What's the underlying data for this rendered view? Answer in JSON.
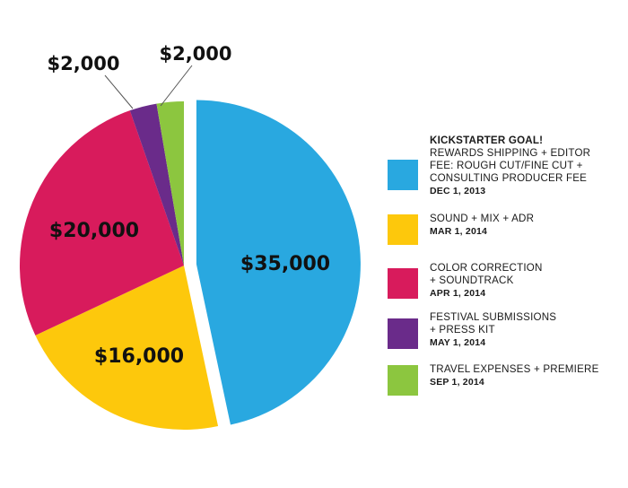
{
  "chart_data": {
    "type": "pie",
    "title": "",
    "slices": [
      {
        "id": "slice-35000",
        "label": "$35,000",
        "value": 35000,
        "color": "#29a8e0",
        "exploded": true
      },
      {
        "id": "slice-16000",
        "label": "$16,000",
        "value": 16000,
        "color": "#fdc80c"
      },
      {
        "id": "slice-20000",
        "label": "$20,000",
        "value": 20000,
        "color": "#d81b5c"
      },
      {
        "id": "slice-2000-festival",
        "label": "$2,000",
        "value": 2000,
        "color": "#6a2b8a"
      },
      {
        "id": "slice-2000-travel",
        "label": "$2,000",
        "value": 2000,
        "color": "#8cc63f"
      }
    ],
    "legend": [
      {
        "heading": "KICKSTARTER GOAL!",
        "lines": [
          "REWARDS SHIPPING + EDITOR",
          "FEE: ROUGH CUT/FINE CUT +",
          "CONSULTING PRODUCER FEE"
        ],
        "date": "DEC 1, 2013",
        "color": "#29a8e0"
      },
      {
        "heading": "",
        "lines": [
          "SOUND + MIX + ADR"
        ],
        "date": "MAR 1, 2014",
        "color": "#fdc80c"
      },
      {
        "heading": "",
        "lines": [
          "COLOR CORRECTION",
          "+ SOUNDTRACK"
        ],
        "date": "APR 1, 2014",
        "color": "#d81b5c"
      },
      {
        "heading": "",
        "lines": [
          "FESTIVAL SUBMISSIONS",
          "+ PRESS KIT"
        ],
        "date": "MAY 1, 2014",
        "color": "#6a2b8a"
      },
      {
        "heading": "",
        "lines": [
          "TRAVEL EXPENSES + PREMIERE"
        ],
        "date": "SEP 1, 2014",
        "color": "#8cc63f"
      }
    ]
  }
}
